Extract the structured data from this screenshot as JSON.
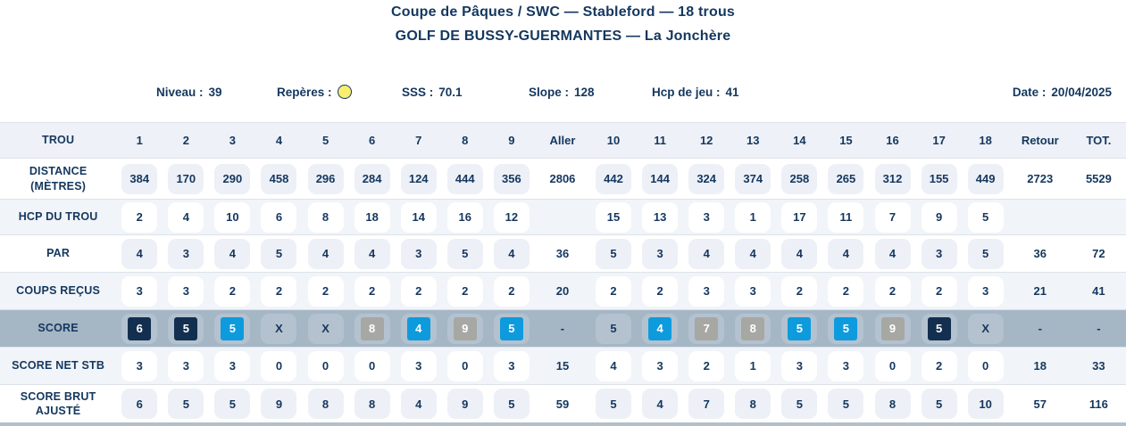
{
  "header": {
    "title_line1": "Coupe de Pâques / SWC — Stableford — 18 trous",
    "title_line2": "GOLF DE BUSSY-GUERMANTES — La Jonchère"
  },
  "info": {
    "niveau_label": "Niveau :",
    "niveau_value": "39",
    "reperes_label": "Repères :",
    "sss_label": "SSS :",
    "sss_value": "70.1",
    "slope_label": "Slope :",
    "slope_value": "128",
    "hcp_label": "Hcp de jeu :",
    "hcp_value": "41",
    "date_label": "Date :",
    "date_value": "20/04/2025"
  },
  "colors": {
    "navy": "#132f4f",
    "blue": "#0d9bdd",
    "gray": "#a7a7a3",
    "score_row_bg": "#a5b6c5",
    "yellow_marker_fill": "#f9ee6d",
    "yellow_marker_border": "#14375f",
    "text_navy": "#14375f"
  },
  "table": {
    "columns": [
      "TROU",
      "1",
      "2",
      "3",
      "4",
      "5",
      "6",
      "7",
      "8",
      "9",
      "Aller",
      "10",
      "11",
      "12",
      "13",
      "14",
      "15",
      "16",
      "17",
      "18",
      "Retour",
      "TOT."
    ],
    "summary_indices": [
      9,
      19,
      20
    ],
    "rows": [
      {
        "id": "distance",
        "label": [
          "DISTANCE",
          "(MÈTRES)"
        ],
        "rowBg": "white",
        "chip": "gray",
        "cells": [
          "384",
          "170",
          "290",
          "458",
          "296",
          "284",
          "124",
          "444",
          "356",
          "2806",
          "442",
          "144",
          "324",
          "374",
          "258",
          "265",
          "312",
          "155",
          "449",
          "2723",
          "5529"
        ]
      },
      {
        "id": "hcp-du-trou",
        "label": [
          "HCP DU TROU"
        ],
        "rowBg": "tint",
        "chip": "white",
        "cells": [
          "2",
          "4",
          "10",
          "6",
          "8",
          "18",
          "14",
          "16",
          "12",
          "",
          "15",
          "13",
          "3",
          "1",
          "17",
          "11",
          "7",
          "9",
          "5",
          "",
          ""
        ]
      },
      {
        "id": "par",
        "label": [
          "PAR"
        ],
        "rowBg": "white",
        "chip": "gray",
        "cells": [
          "4",
          "3",
          "4",
          "5",
          "4",
          "4",
          "3",
          "5",
          "4",
          "36",
          "5",
          "3",
          "4",
          "4",
          "4",
          "4",
          "4",
          "3",
          "5",
          "36",
          "72"
        ]
      },
      {
        "id": "coups-recus",
        "label": [
          "COUPS REÇUS"
        ],
        "rowBg": "tint",
        "chip": "white",
        "cells": [
          "3",
          "3",
          "2",
          "2",
          "2",
          "2",
          "2",
          "2",
          "2",
          "20",
          "2",
          "2",
          "3",
          "3",
          "2",
          "2",
          "2",
          "2",
          "3",
          "21",
          "41"
        ]
      },
      {
        "id": "score",
        "label": [
          "SCORE"
        ],
        "rowBg": "score",
        "chip": "score",
        "cells": [
          {
            "v": "6",
            "c": "navy"
          },
          {
            "v": "5",
            "c": "navy"
          },
          {
            "v": "5",
            "c": "blue"
          },
          {
            "v": "X"
          },
          {
            "v": "X"
          },
          {
            "v": "8",
            "c": "gray"
          },
          {
            "v": "4",
            "c": "blue"
          },
          {
            "v": "9",
            "c": "gray"
          },
          {
            "v": "5",
            "c": "blue"
          },
          {
            "v": "-"
          },
          {
            "v": "5"
          },
          {
            "v": "4",
            "c": "blue"
          },
          {
            "v": "7",
            "c": "gray"
          },
          {
            "v": "8",
            "c": "gray"
          },
          {
            "v": "5",
            "c": "blue"
          },
          {
            "v": "5",
            "c": "blue"
          },
          {
            "v": "9",
            "c": "gray"
          },
          {
            "v": "5",
            "c": "navy"
          },
          {
            "v": "X"
          },
          {
            "v": "-"
          },
          {
            "v": "-"
          }
        ]
      },
      {
        "id": "score-net-stb",
        "label": [
          "SCORE NET STB"
        ],
        "rowBg": "tint",
        "chip": "white",
        "cells": [
          "3",
          "3",
          "3",
          "0",
          "0",
          "0",
          "3",
          "0",
          "3",
          "15",
          "4",
          "3",
          "2",
          "1",
          "3",
          "3",
          "0",
          "2",
          "0",
          "18",
          "33"
        ]
      },
      {
        "id": "score-brut-ajuste",
        "label": [
          "SCORE BRUT",
          "AJUSTÉ"
        ],
        "rowBg": "white",
        "chip": "gray",
        "cells": [
          "6",
          "5",
          "5",
          "9",
          "8",
          "8",
          "4",
          "9",
          "5",
          "59",
          "5",
          "4",
          "7",
          "8",
          "5",
          "5",
          "8",
          "5",
          "10",
          "57",
          "116"
        ]
      }
    ]
  }
}
